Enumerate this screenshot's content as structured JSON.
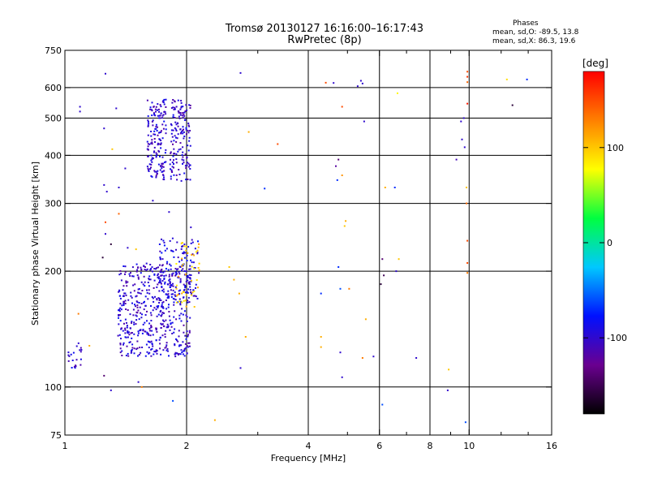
{
  "header": {
    "title": "Tromsø 20130127 16:16:00–16:17:43",
    "subtitle": "RwPretec (8p)"
  },
  "phase_stats": {
    "heading": "Phases",
    "o_line": "mean, sd,O: -89.5, 13.8",
    "x_line": "mean, sd,X:  86.3, 19.6"
  },
  "colorbar": {
    "label": "[deg]",
    "ticks": [
      "100",
      "0",
      "-100"
    ],
    "tick_values": [
      100,
      0,
      -100
    ],
    "range": [
      -180,
      180
    ],
    "stops": [
      "#000000",
      "#6a0090",
      "#0010ff",
      "#00c8ff",
      "#00ff40",
      "#ffff00",
      "#ff8000",
      "#ff0000"
    ]
  },
  "chart_data": {
    "type": "scatter",
    "xlabel": "Frequency [MHz]",
    "ylabel": "Stationary phase Virtual Height [km]",
    "x_scale": "log",
    "y_scale": "log",
    "xlim": [
      1,
      16
    ],
    "ylim": [
      75,
      750
    ],
    "x_ticks": [
      1,
      2,
      4,
      6,
      8,
      10,
      16
    ],
    "x_tick_labels": [
      "1",
      "2",
      "4",
      "6",
      "8",
      "10",
      "16"
    ],
    "x_minor_ticks": [
      3,
      5,
      7,
      9,
      12,
      14
    ],
    "y_ticks": [
      75,
      100,
      200,
      300,
      400,
      500,
      600,
      750
    ],
    "y_tick_labels": [
      "75",
      "100",
      "200",
      "300",
      "400",
      "500",
      "600",
      "750"
    ],
    "grid_x": [
      2,
      4,
      6,
      8,
      10
    ],
    "grid_y": [
      100,
      200,
      300,
      400,
      500,
      600
    ],
    "clusters": [
      {
        "fmin": 1.6,
        "fmax": 1.78,
        "hmin": 345,
        "hmax": 560,
        "n": 160,
        "phase": -100
      },
      {
        "fmin": 1.82,
        "fmax": 2.05,
        "hmin": 340,
        "hmax": 560,
        "n": 150,
        "phase": -100
      },
      {
        "fmin": 1.35,
        "fmax": 2.05,
        "hmin": 120,
        "hmax": 210,
        "n": 520,
        "phase": -100
      },
      {
        "fmin": 1.7,
        "fmax": 2.15,
        "hmin": 165,
        "hmax": 245,
        "n": 120,
        "phase": -95
      },
      {
        "fmin": 1.88,
        "fmax": 2.15,
        "hmin": 160,
        "hmax": 240,
        "n": 45,
        "phase": 100
      },
      {
        "fmin": 1.02,
        "fmax": 1.1,
        "hmin": 112,
        "hmax": 130,
        "n": 22,
        "phase": -100
      }
    ],
    "points": [
      {
        "f": 1.26,
        "h": 652,
        "phase": -100
      },
      {
        "f": 1.09,
        "h": 535,
        "phase": -100
      },
      {
        "f": 1.09,
        "h": 520,
        "phase": -100
      },
      {
        "f": 1.34,
        "h": 530,
        "phase": -100
      },
      {
        "f": 1.25,
        "h": 470,
        "phase": -100
      },
      {
        "f": 1.31,
        "h": 415,
        "phase": 100
      },
      {
        "f": 1.25,
        "h": 335,
        "phase": -100
      },
      {
        "f": 1.27,
        "h": 322,
        "phase": -100
      },
      {
        "f": 1.36,
        "h": 330,
        "phase": -100
      },
      {
        "f": 1.41,
        "h": 370,
        "phase": -100
      },
      {
        "f": 1.36,
        "h": 282,
        "phase": 140
      },
      {
        "f": 1.26,
        "h": 268,
        "phase": 150
      },
      {
        "f": 1.26,
        "h": 250,
        "phase": -100
      },
      {
        "f": 1.43,
        "h": 230,
        "phase": -100
      },
      {
        "f": 1.3,
        "h": 235,
        "phase": -160
      },
      {
        "f": 1.24,
        "h": 217,
        "phase": -160
      },
      {
        "f": 1.5,
        "h": 228,
        "phase": 100
      },
      {
        "f": 1.81,
        "h": 285,
        "phase": -100
      },
      {
        "f": 2.05,
        "h": 260,
        "phase": -100
      },
      {
        "f": 1.65,
        "h": 305,
        "phase": -100
      },
      {
        "f": 2.72,
        "h": 655,
        "phase": -100
      },
      {
        "f": 2.85,
        "h": 460,
        "phase": 110
      },
      {
        "f": 3.36,
        "h": 428,
        "phase": 150
      },
      {
        "f": 3.12,
        "h": 328,
        "phase": -70
      },
      {
        "f": 2.72,
        "h": 112,
        "phase": -100
      },
      {
        "f": 2.8,
        "h": 135,
        "phase": 110
      },
      {
        "f": 2.35,
        "h": 82,
        "phase": 110
      },
      {
        "f": 1.25,
        "h": 107,
        "phase": -140
      },
      {
        "f": 1.3,
        "h": 98,
        "phase": -100
      },
      {
        "f": 1.52,
        "h": 103,
        "phase": -100
      },
      {
        "f": 1.55,
        "h": 100,
        "phase": 130
      },
      {
        "f": 1.85,
        "h": 92,
        "phase": -60
      },
      {
        "f": 1.08,
        "h": 155,
        "phase": 130
      },
      {
        "f": 1.15,
        "h": 128,
        "phase": 110
      },
      {
        "f": 2.55,
        "h": 205,
        "phase": 100
      },
      {
        "f": 2.62,
        "h": 190,
        "phase": 110
      },
      {
        "f": 2.7,
        "h": 175,
        "phase": 110
      },
      {
        "f": 4.42,
        "h": 618,
        "phase": 150
      },
      {
        "f": 4.62,
        "h": 617,
        "phase": -100
      },
      {
        "f": 4.85,
        "h": 535,
        "phase": 150
      },
      {
        "f": 5.4,
        "h": 625,
        "phase": -100
      },
      {
        "f": 5.45,
        "h": 615,
        "phase": -100
      },
      {
        "f": 5.3,
        "h": 605,
        "phase": -100
      },
      {
        "f": 5.5,
        "h": 490,
        "phase": -100
      },
      {
        "f": 4.75,
        "h": 390,
        "phase": -140
      },
      {
        "f": 4.68,
        "h": 375,
        "phase": -120
      },
      {
        "f": 4.85,
        "h": 355,
        "phase": 120
      },
      {
        "f": 4.72,
        "h": 345,
        "phase": -70
      },
      {
        "f": 4.95,
        "h": 270,
        "phase": 110
      },
      {
        "f": 4.92,
        "h": 262,
        "phase": 100
      },
      {
        "f": 6.2,
        "h": 330,
        "phase": 110
      },
      {
        "f": 6.55,
        "h": 330,
        "phase": -70
      },
      {
        "f": 6.65,
        "h": 580,
        "phase": 80
      },
      {
        "f": 6.1,
        "h": 215,
        "phase": -140
      },
      {
        "f": 6.7,
        "h": 215,
        "phase": 100
      },
      {
        "f": 6.15,
        "h": 195,
        "phase": -150
      },
      {
        "f": 6.6,
        "h": 200,
        "phase": -100
      },
      {
        "f": 6.05,
        "h": 185,
        "phase": -160
      },
      {
        "f": 4.3,
        "h": 175,
        "phase": -70
      },
      {
        "f": 4.8,
        "h": 180,
        "phase": -60
      },
      {
        "f": 5.05,
        "h": 180,
        "phase": 130
      },
      {
        "f": 5.55,
        "h": 150,
        "phase": 110
      },
      {
        "f": 4.75,
        "h": 205,
        "phase": -70
      },
      {
        "f": 4.3,
        "h": 135,
        "phase": 110
      },
      {
        "f": 4.3,
        "h": 127,
        "phase": 110
      },
      {
        "f": 4.8,
        "h": 123,
        "phase": -100
      },
      {
        "f": 5.45,
        "h": 119,
        "phase": 130
      },
      {
        "f": 5.8,
        "h": 120,
        "phase": -100
      },
      {
        "f": 4.85,
        "h": 106,
        "phase": -100
      },
      {
        "f": 6.1,
        "h": 90,
        "phase": -60
      },
      {
        "f": 7.4,
        "h": 119,
        "phase": -100
      },
      {
        "f": 8.9,
        "h": 111,
        "phase": 100
      },
      {
        "f": 8.85,
        "h": 98,
        "phase": -100
      },
      {
        "f": 9.8,
        "h": 81,
        "phase": -60
      },
      {
        "f": 9.55,
        "h": 490,
        "phase": -100
      },
      {
        "f": 9.7,
        "h": 500,
        "phase": -100
      },
      {
        "f": 9.6,
        "h": 440,
        "phase": -100
      },
      {
        "f": 9.75,
        "h": 420,
        "phase": -100
      },
      {
        "f": 9.3,
        "h": 390,
        "phase": -110
      },
      {
        "f": 9.9,
        "h": 660,
        "phase": 150
      },
      {
        "f": 9.9,
        "h": 640,
        "phase": 160
      },
      {
        "f": 9.9,
        "h": 620,
        "phase": 140
      },
      {
        "f": 9.9,
        "h": 545,
        "phase": 170
      },
      {
        "f": 9.85,
        "h": 330,
        "phase": 100
      },
      {
        "f": 9.85,
        "h": 300,
        "phase": 140
      },
      {
        "f": 9.9,
        "h": 240,
        "phase": 150
      },
      {
        "f": 9.9,
        "h": 210,
        "phase": 150
      },
      {
        "f": 9.9,
        "h": 198,
        "phase": 130
      },
      {
        "f": 12.4,
        "h": 630,
        "phase": 90
      },
      {
        "f": 13.9,
        "h": 630,
        "phase": -70
      },
      {
        "f": 12.8,
        "h": 540,
        "phase": -160
      }
    ]
  }
}
